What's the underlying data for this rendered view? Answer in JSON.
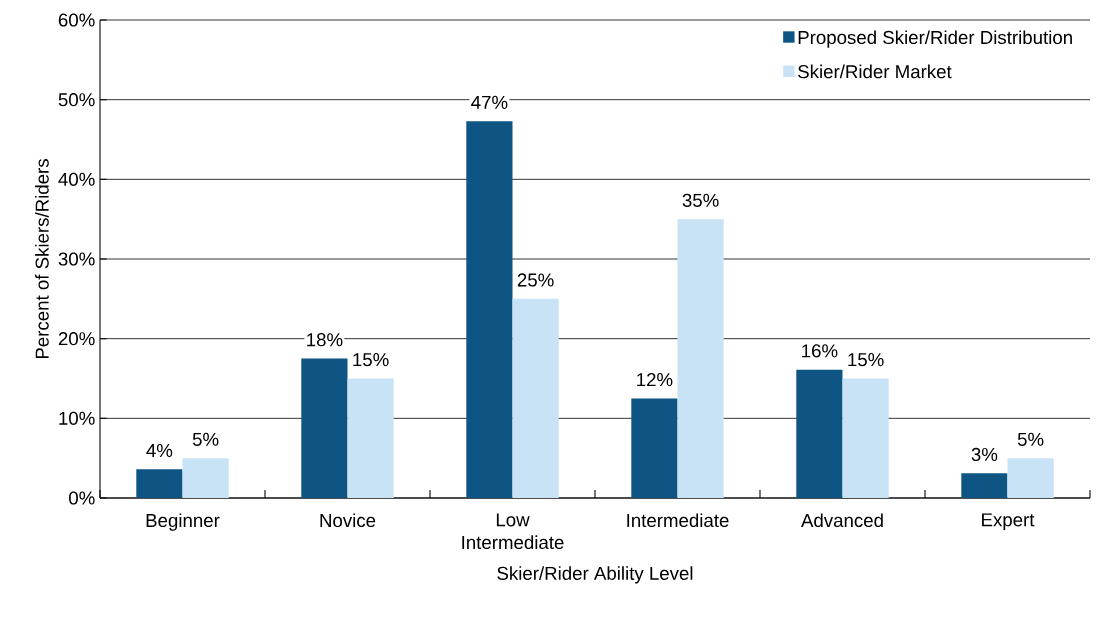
{
  "chart_data": {
    "type": "bar",
    "xlabel": "Skier/Rider Ability Level",
    "ylabel": "Percent of Skiers/Riders",
    "categories": [
      "Beginner",
      "Novice",
      "Low Intermediate",
      "Intermediate",
      "Advanced",
      "Expert"
    ],
    "series": [
      {
        "name": "Proposed Skier/Rider Distribution",
        "color": "#0f5584",
        "values": [
          3.6,
          17.5,
          47.3,
          12.5,
          16.1,
          3.1
        ],
        "value_labels": [
          "4%",
          "18%",
          "47%",
          "12%",
          "16%",
          "3%"
        ]
      },
      {
        "name": "Skier/Rider Market",
        "color": "#c8e3f5",
        "values": [
          5,
          15,
          25,
          35,
          15,
          5
        ],
        "value_labels": [
          "5%",
          "15%",
          "25%",
          "35%",
          "15%",
          "5%"
        ]
      }
    ],
    "ylim": [
      0,
      60
    ],
    "yticks": [
      {
        "value": 0,
        "label": "0%"
      },
      {
        "value": 10,
        "label": "10%"
      },
      {
        "value": 20,
        "label": "20%"
      },
      {
        "value": 30,
        "label": "30%"
      },
      {
        "value": 40,
        "label": "40%"
      },
      {
        "value": 50,
        "label": "50%"
      },
      {
        "value": 60,
        "label": "60%"
      }
    ],
    "grid": "y",
    "legend": "top right"
  }
}
